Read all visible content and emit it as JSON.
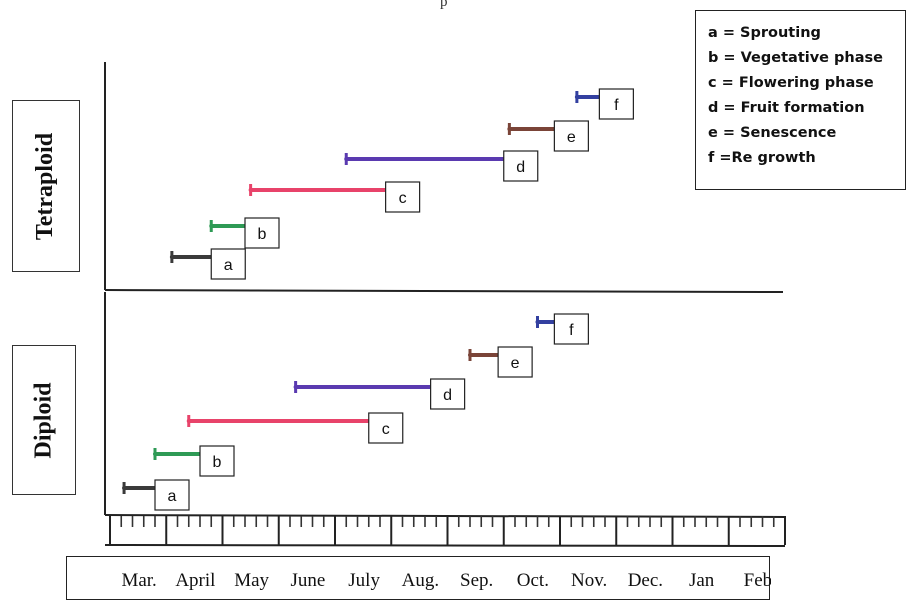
{
  "partial_caption": "p",
  "legend": [
    {
      "key": "a",
      "text": "a = Sprouting"
    },
    {
      "key": "b",
      "text": "b = Vegetative  phase"
    },
    {
      "key": "c",
      "text": "c = Flowering phase"
    },
    {
      "key": "d",
      "text": "d = Fruit formation"
    },
    {
      "key": "e",
      "text": "e = Senescence"
    },
    {
      "key": "f",
      "text": " f =Re growth"
    }
  ],
  "panel_labels": {
    "top": "Tetraploid",
    "bottom": "Diploid"
  },
  "chart_data": {
    "type": "gantt",
    "months": [
      "Mar.",
      "April",
      "May",
      "June",
      "July",
      "Aug.",
      "Sep.",
      "Oct.",
      "Nov.",
      "Dec.",
      "Jan",
      "Feb"
    ],
    "x_unit": "months from March start (0 = start of Mar., 12 = end of Feb)",
    "xlim": [
      0,
      12
    ],
    "colors": {
      "a": "#3a3a3a",
      "b": "#2e9a55",
      "c": "#e8436a",
      "d": "#5a3ab0",
      "e": "#7a4438",
      "f": "#3340a0"
    },
    "panels": [
      {
        "name": "Tetraploid",
        "phases": [
          {
            "key": "a",
            "label": "a",
            "start": 1.1,
            "end": 1.8
          },
          {
            "key": "b",
            "label": "b",
            "start": 1.8,
            "end": 2.4
          },
          {
            "key": "c",
            "label": "c",
            "start": 2.5,
            "end": 4.9
          },
          {
            "key": "d",
            "label": "d",
            "start": 4.2,
            "end": 7.0
          },
          {
            "key": "e",
            "label": "e",
            "start": 7.1,
            "end": 7.9
          },
          {
            "key": "f",
            "label": "f",
            "start": 8.3,
            "end": 8.7
          }
        ]
      },
      {
        "name": "Diploid",
        "phases": [
          {
            "key": "a",
            "label": "a",
            "start": 0.25,
            "end": 0.8
          },
          {
            "key": "b",
            "label": "b",
            "start": 0.8,
            "end": 1.6
          },
          {
            "key": "c",
            "label": "c",
            "start": 1.4,
            "end": 4.6
          },
          {
            "key": "d",
            "label": "d",
            "start": 3.3,
            "end": 5.7
          },
          {
            "key": "e",
            "label": "e",
            "start": 6.4,
            "end": 6.9
          },
          {
            "key": "f",
            "label": "f",
            "start": 7.6,
            "end": 7.9
          }
        ]
      }
    ]
  }
}
